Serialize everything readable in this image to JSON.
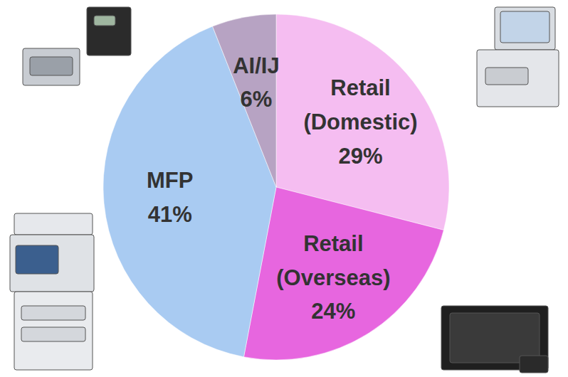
{
  "chart_data": {
    "type": "pie",
    "categories": [
      "Retail (Domestic)",
      "Retail (Overseas)",
      "MFP",
      "AI/IJ"
    ],
    "values": [
      29,
      24,
      41,
      6
    ],
    "value_labels": [
      "29%",
      "24%",
      "41%",
      "6%"
    ],
    "colors": [
      "#f5bdf1",
      "#e766df",
      "#a9cbf2",
      "#b7a3c3"
    ],
    "data_labels": true
  }
}
